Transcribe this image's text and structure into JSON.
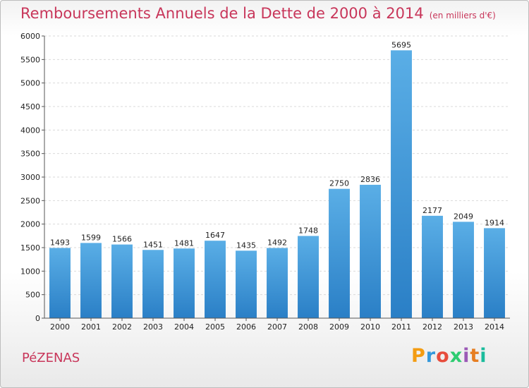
{
  "header": {
    "title": "Remboursements Annuels de la Dette de 2000 à 2014",
    "subtitle": "(en milliers d'€)"
  },
  "footer": {
    "town": "PéZENAS",
    "brand": "Proxiti",
    "brand_colors": [
      "#f39c12",
      "#3498db",
      "#e74c3c",
      "#2ecc71",
      "#9b59b6",
      "#e67e22",
      "#1abc9c"
    ]
  },
  "chart_data": {
    "type": "bar",
    "categories": [
      "2000",
      "2001",
      "2002",
      "2003",
      "2004",
      "2005",
      "2006",
      "2007",
      "2008",
      "2009",
      "2010",
      "2011",
      "2012",
      "2013",
      "2014"
    ],
    "values": [
      1493,
      1599,
      1566,
      1451,
      1481,
      1647,
      1435,
      1492,
      1748,
      2750,
      2836,
      5695,
      2177,
      2049,
      1914
    ],
    "ylim": [
      0,
      6000
    ],
    "yticks": [
      0,
      500,
      1000,
      1500,
      2000,
      2500,
      3000,
      3500,
      4000,
      4500,
      5000,
      5500,
      6000
    ],
    "grid": true,
    "data_labels": true,
    "bar_color_top": "#5aaee6",
    "bar_color_bottom": "#2a7fc6"
  }
}
